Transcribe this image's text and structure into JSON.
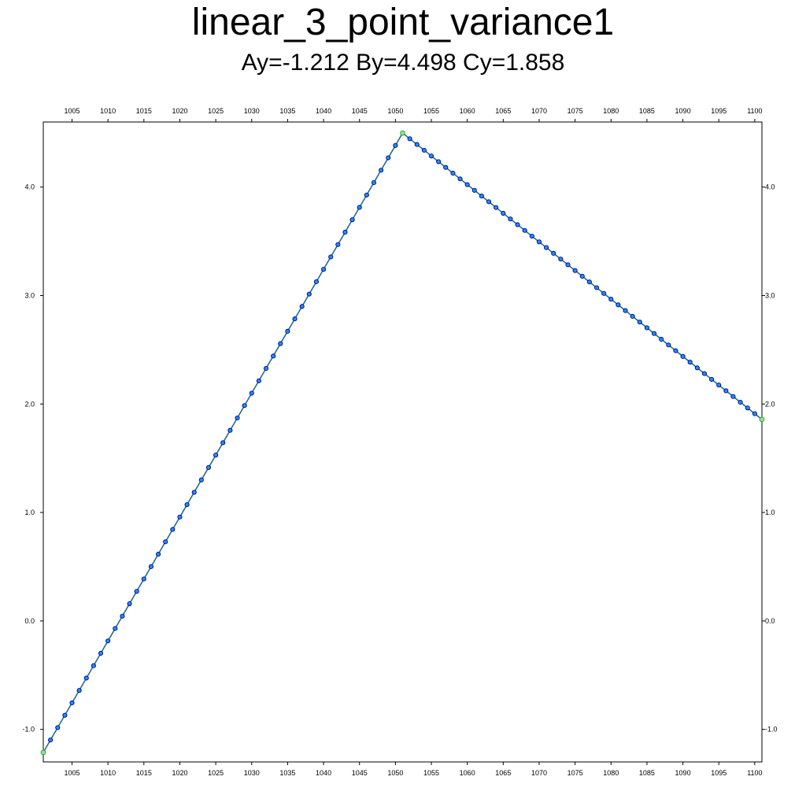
{
  "chart_data": {
    "type": "line",
    "title": "linear_3_point_variance1",
    "subtitle": "Ay=-1.212 By=4.498 Cy=1.858",
    "xlabel": "",
    "ylabel": "",
    "xlim": [
      1001,
      1101
    ],
    "ylim": [
      -1.3,
      4.6
    ],
    "x_ticks": [
      1005,
      1010,
      1015,
      1020,
      1025,
      1030,
      1035,
      1040,
      1045,
      1050,
      1055,
      1060,
      1065,
      1070,
      1075,
      1080,
      1085,
      1090,
      1095,
      1100
    ],
    "y_ticks": [
      -1.0,
      0.0,
      1.0,
      2.0,
      3.0,
      4.0
    ],
    "y_tick_labels": [
      "-1.0",
      "0.0",
      "1.0",
      "2.0",
      "3.0",
      "4.0"
    ],
    "grid": false,
    "legend": "none",
    "control_points": [
      {
        "name": "A",
        "x": 1001,
        "y": -1.212
      },
      {
        "name": "B",
        "x": 1051,
        "y": 4.498
      },
      {
        "name": "C",
        "x": 1101,
        "y": 1.858
      }
    ],
    "series": [
      {
        "color": "#2ca02c",
        "marker": "none"
      },
      {
        "color": "#e83030",
        "marker": "none"
      },
      {
        "color": "#1060d0",
        "marker": "circle",
        "marker_edge": "#000080",
        "marker_fill": "#1e90ff"
      }
    ],
    "colors": {
      "segment": "#22aa22",
      "noisy_line": "#e83030",
      "sample_line": "#1060d0",
      "marker_fill": "#1e90ff",
      "marker_edge": "#000080"
    }
  }
}
